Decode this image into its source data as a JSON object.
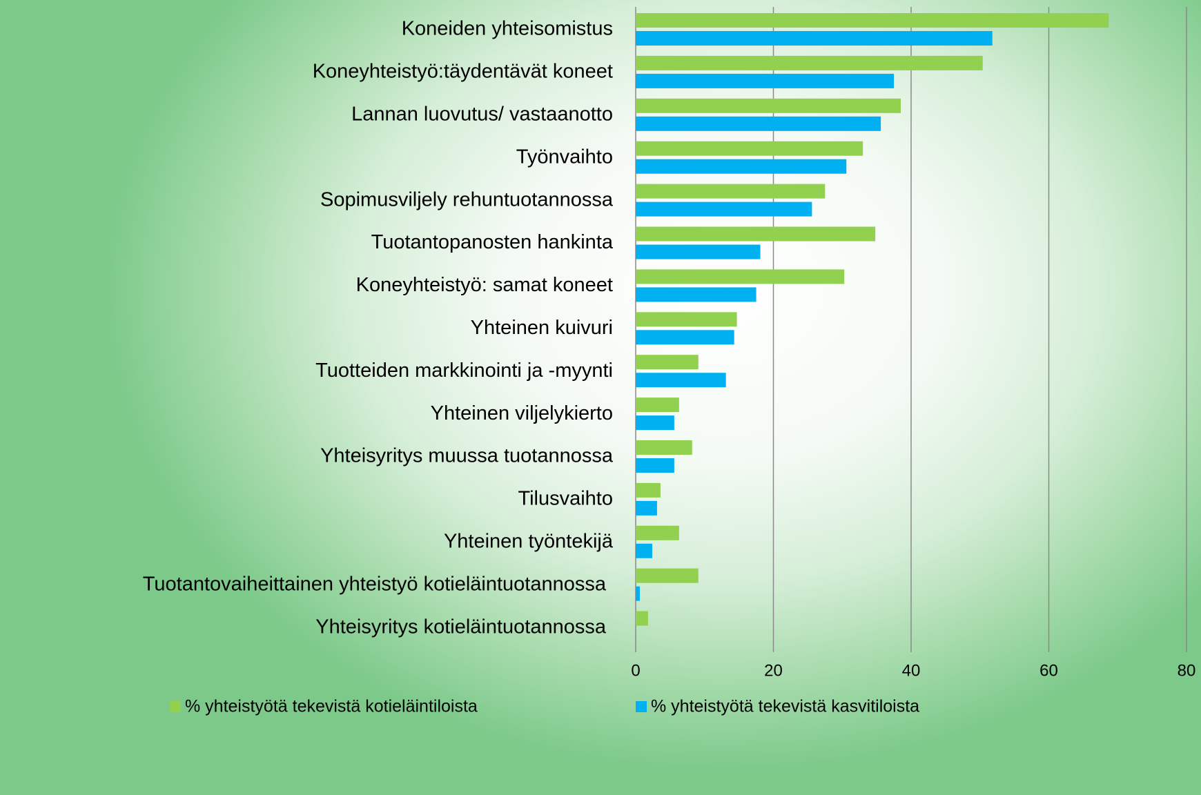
{
  "chart_data": {
    "type": "bar",
    "orientation": "horizontal",
    "categories": [
      "Koneiden yhteisomistus",
      "Koneyhteistyö:täydentävät koneet",
      "Lannan luovutus/ vastaanotto",
      "Työnvaihto",
      "Sopimusviljely rehuntuotannossa",
      "Tuotantopanosten hankinta",
      "Koneyhteistyö: samat koneet",
      "Yhteinen kuivuri",
      "Tuotteiden markkinointi ja -myynti",
      "Yhteinen viljelykierto",
      "Yhteisyritys muussa tuotannossa",
      "Tilusvaihto",
      "Yhteinen työntekijä",
      "Tuotantovaiheittainen yhteistyö kotieläintuotannossa",
      "Yhteisyritys kotieläintuotannossa"
    ],
    "series": [
      {
        "name": "% yhteistyötä tekevistä kotieläintiloista",
        "color": "#92d050",
        "values": [
          68.7,
          50.4,
          38.5,
          33,
          27.5,
          34.8,
          30.3,
          14.7,
          9.1,
          6.3,
          8.2,
          3.6,
          6.3,
          9.1,
          1.8
        ]
      },
      {
        "name": "% yhteistyötä tekevistä kasvitiloista",
        "color": "#00b0f0",
        "values": [
          51.8,
          37.5,
          35.6,
          30.6,
          25.6,
          18.1,
          17.5,
          14.3,
          13.1,
          5.6,
          5.6,
          3.1,
          2.4,
          0.6,
          0
        ]
      }
    ],
    "xlim": [
      0,
      80
    ],
    "xticks": [
      0,
      20,
      40,
      60,
      80
    ],
    "grid": true
  }
}
